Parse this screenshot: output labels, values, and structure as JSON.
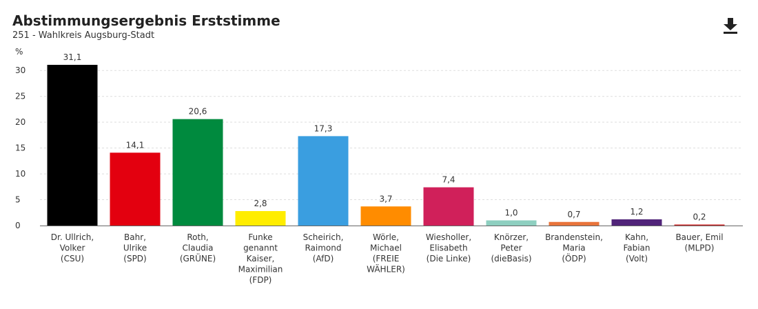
{
  "header": {
    "title": "Abstimmungsergebnis Erststimme",
    "subtitle": "251 - Wahlkreis Augsburg-Stadt",
    "download_icon": "download-icon"
  },
  "chart_data": {
    "type": "bar",
    "title": "Abstimmungsergebnis Erststimme",
    "subtitle": "251 - Wahlkreis Augsburg-Stadt",
    "ylabel": "%",
    "ylim": [
      0,
      31.1
    ],
    "yticks": [
      "0",
      "5",
      "10",
      "15",
      "20",
      "25",
      "30"
    ],
    "grid": true,
    "categories": [
      [
        "Dr. Ullrich,",
        "Volker",
        "(CSU)"
      ],
      [
        "Bahr,",
        "Ulrike",
        "(SPD)"
      ],
      [
        "Roth,",
        "Claudia",
        "(GRÜNE)"
      ],
      [
        "Funke",
        "genannt",
        "Kaiser,",
        "Maximilian",
        "(FDP)"
      ],
      [
        "Scheirich,",
        "Raimond",
        "(AfD)"
      ],
      [
        "Wörle,",
        "Michael",
        "(FREIE",
        "WÄHLER)"
      ],
      [
        "Wiesholler,",
        "Elisabeth",
        "(Die Linke)"
      ],
      [
        "Knörzer,",
        "Peter",
        "(dieBasis)"
      ],
      [
        "Brandenstein,",
        "Maria",
        "(ÖDP)"
      ],
      [
        "Kahn,",
        "Fabian",
        "(Volt)"
      ],
      [
        "Bauer, Emil",
        "(MLPD)"
      ]
    ],
    "values": [
      31.1,
      14.1,
      20.6,
      2.8,
      17.3,
      3.7,
      7.4,
      1.0,
      0.7,
      1.2,
      0.2
    ],
    "value_labels": [
      "31,1",
      "14,1",
      "20,6",
      "2,8",
      "17,3",
      "3,7",
      "7,4",
      "1,0",
      "0,7",
      "1,2",
      "0,2"
    ],
    "colors": [
      "#000000",
      "#e3000f",
      "#008a3e",
      "#ffed00",
      "#3a9ee0",
      "#ff8c00",
      "#d0205a",
      "#8ecfc0",
      "#e8743b",
      "#502479",
      "#cc2a2a"
    ]
  }
}
